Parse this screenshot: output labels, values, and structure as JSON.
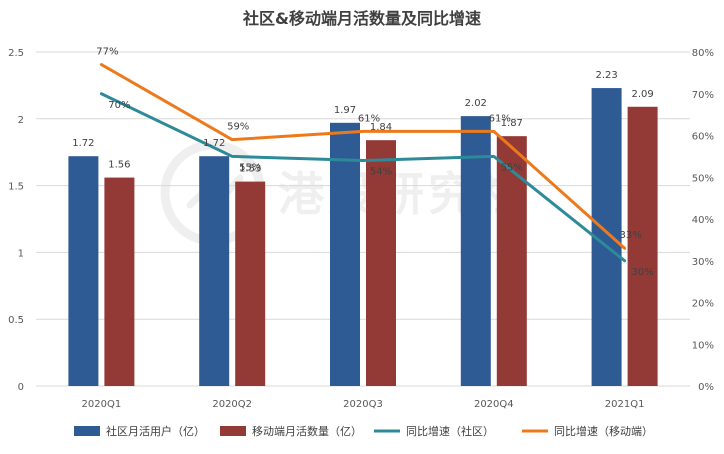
{
  "chart_data": {
    "type": "bar",
    "title": "社区&移动端月活数量及同比增速",
    "categories": [
      "2020Q1",
      "2020Q2",
      "2020Q3",
      "2020Q4",
      "2021Q1"
    ],
    "y_left": {
      "ylim": [
        0,
        2.5
      ],
      "ticks": [
        "0",
        "0.5",
        "1",
        "1.5",
        "2",
        "2.5"
      ]
    },
    "y_right": {
      "ylim": [
        0,
        0.8
      ],
      "ticks": [
        "0%",
        "10%",
        "20%",
        "30%",
        "40%",
        "50%",
        "60%",
        "70%",
        "80%"
      ]
    },
    "series": [
      {
        "name": "社区月活用户（亿）",
        "type": "bar",
        "axis": "left",
        "color": "#2e5b94",
        "values": [
          1.72,
          1.72,
          1.97,
          2.02,
          2.23
        ],
        "labels": [
          "1.72",
          "1.72",
          "1.97",
          "2.02",
          "2.23"
        ]
      },
      {
        "name": "移动端月活数量（亿）",
        "type": "bar",
        "axis": "left",
        "color": "#943a36",
        "values": [
          1.56,
          1.53,
          1.84,
          1.87,
          2.09
        ],
        "labels": [
          "1.56",
          "1.53",
          "1.84",
          "1.87",
          "2.09"
        ]
      },
      {
        "name": "同比增速（社区）",
        "type": "line",
        "axis": "right",
        "color": "#2d8a99",
        "values": [
          0.7,
          0.55,
          0.54,
          0.55,
          0.3
        ],
        "labels": [
          "70%",
          "55%",
          "54%",
          "55%",
          "30%"
        ]
      },
      {
        "name": "同比增速（移动端）",
        "type": "line",
        "axis": "right",
        "color": "#ec7a1c",
        "values": [
          0.77,
          0.59,
          0.61,
          0.61,
          0.33
        ],
        "labels": [
          "77%",
          "59%",
          "61%",
          "61%",
          "33%"
        ]
      }
    ],
    "grid": true,
    "legend_position": "bottom"
  },
  "watermark_text": "港股研究社"
}
